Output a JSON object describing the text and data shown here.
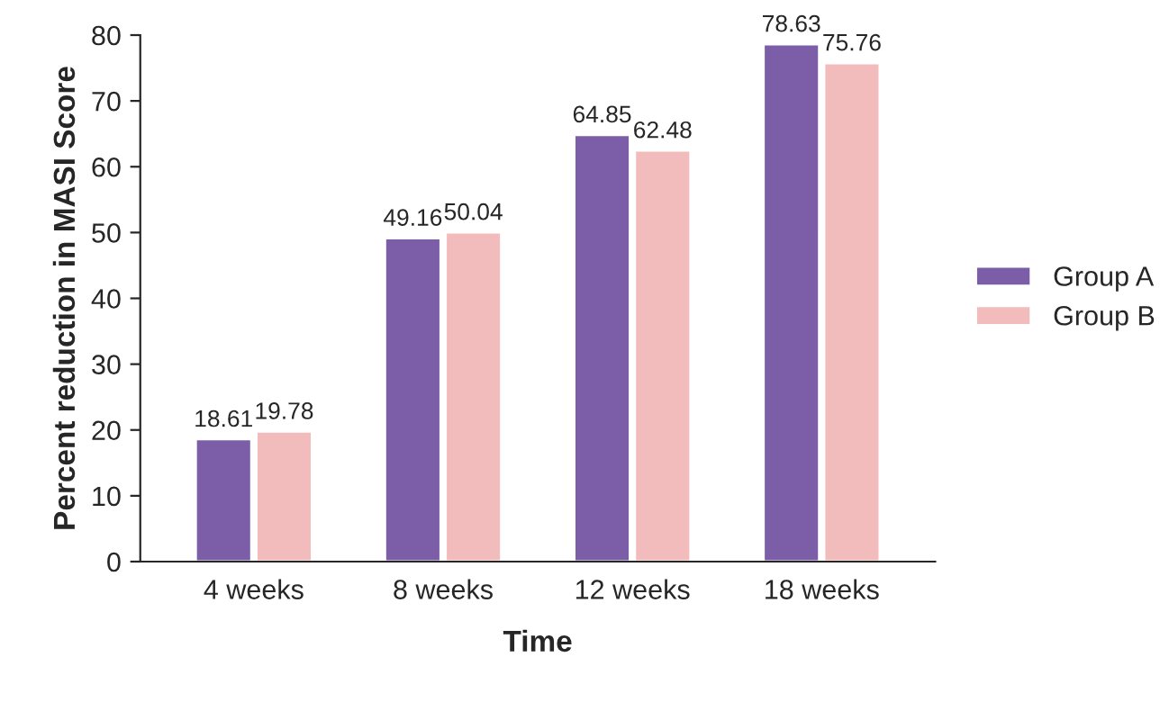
{
  "chart_data": {
    "type": "bar",
    "xlabel": "Time",
    "ylabel": "Percent reduction in MASI Score",
    "categories": [
      "4 weeks",
      "8 weeks",
      "12 weeks",
      "18 weeks"
    ],
    "series": [
      {
        "name": "Group A",
        "color": "#7b5ea7",
        "values": [
          18.61,
          49.16,
          64.85,
          78.63
        ]
      },
      {
        "name": "Group B",
        "color": "#f2bcbc",
        "values": [
          19.78,
          50.04,
          62.48,
          75.76
        ]
      }
    ],
    "ylim": [
      0,
      80
    ],
    "yticks": [
      0,
      10,
      20,
      30,
      40,
      50,
      60,
      70,
      80
    ],
    "data_labels": true,
    "legend": "right",
    "grid": false
  }
}
